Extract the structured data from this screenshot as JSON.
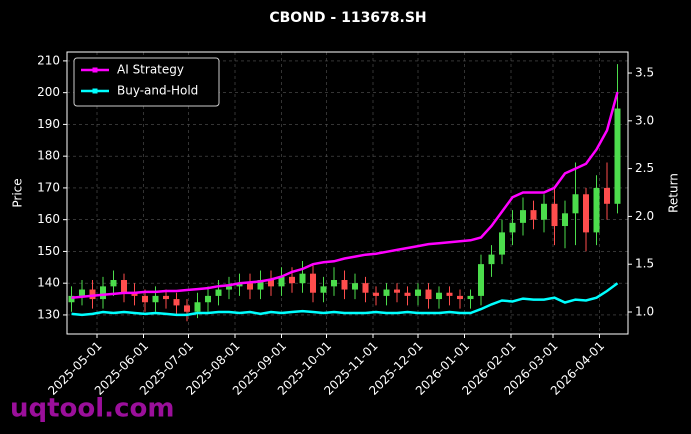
{
  "chart_data": {
    "type": "candlestick",
    "title": "CBOND - 113678.SH",
    "ylabel": "Price",
    "y2label": "Return",
    "watermark": "uqtool.com",
    "grid": true,
    "legend": "upper left",
    "up_color": "#4cdd4c",
    "down_color": "#ff4d4d",
    "xlim": [
      "2025-04-11",
      "2026-04-20"
    ],
    "xticks": [
      "2025-05-01",
      "2025-06-01",
      "2025-07-01",
      "2025-08-01",
      "2025-09-01",
      "2025-10-01",
      "2025-11-01",
      "2025-12-01",
      "2026-01-01",
      "2026-02-01",
      "2026-03-01",
      "2026-04-01"
    ],
    "ylim": [
      124,
      212.8
    ],
    "yticks": [
      130,
      140,
      150,
      160,
      170,
      180,
      190,
      200,
      210
    ],
    "y2lim": [
      0.77,
      3.72
    ],
    "y2ticks": [
      {
        "value": 1,
        "label": "1.0"
      },
      1.5,
      {
        "value": 2,
        "label": "2.0"
      },
      2.5,
      {
        "value": 3,
        "label": "3.0"
      },
      3.5
    ],
    "x": [
      "2025-04-14",
      "2025-04-21",
      "2025-04-28",
      "2025-05-05",
      "2025-05-12",
      "2025-05-19",
      "2025-05-26",
      "2025-06-02",
      "2025-06-09",
      "2025-06-16",
      "2025-06-23",
      "2025-06-30",
      "2025-07-07",
      "2025-07-14",
      "2025-07-21",
      "2025-07-28",
      "2025-08-04",
      "2025-08-11",
      "2025-08-18",
      "2025-08-25",
      "2025-09-01",
      "2025-09-08",
      "2025-09-15",
      "2025-09-22",
      "2025-09-29",
      "2025-10-06",
      "2025-10-13",
      "2025-10-20",
      "2025-10-27",
      "2025-11-03",
      "2025-11-10",
      "2025-11-17",
      "2025-11-24",
      "2025-12-01",
      "2025-12-08",
      "2025-12-15",
      "2025-12-22",
      "2025-12-29",
      "2026-01-05",
      "2026-01-12",
      "2026-01-19",
      "2026-01-26",
      "2026-02-02",
      "2026-02-09",
      "2026-02-16",
      "2026-02-23",
      "2026-03-02",
      "2026-03-09",
      "2026-03-16",
      "2026-03-23",
      "2026-03-30",
      "2026-04-06",
      "2026-04-13"
    ],
    "open": [
      134,
      136,
      138,
      135,
      139,
      141,
      137,
      136,
      134,
      136,
      135,
      133,
      131,
      134,
      136,
      138,
      139,
      140,
      138,
      141,
      139,
      142,
      140,
      143,
      137,
      139,
      141,
      138,
      140,
      137,
      136,
      138,
      137,
      136,
      138,
      135,
      137,
      136,
      135,
      136,
      146,
      149,
      156,
      159,
      163,
      160,
      165,
      158,
      162,
      168,
      156,
      170,
      165
    ],
    "high": [
      139,
      141,
      141,
      142,
      144,
      143,
      140,
      138,
      139,
      138,
      137,
      135,
      137,
      139,
      141,
      142,
      143,
      143,
      144,
      144,
      145,
      145,
      147,
      146,
      142,
      145,
      144,
      143,
      142,
      139,
      140,
      140,
      139,
      140,
      140,
      139,
      139,
      138,
      138,
      149,
      152,
      160,
      163,
      167,
      166,
      168,
      170,
      166,
      178,
      170,
      174,
      178,
      209
    ],
    "low": [
      131,
      133,
      132,
      132,
      136,
      134,
      133,
      131,
      131,
      132,
      130,
      128,
      129,
      131,
      133,
      135,
      136,
      135,
      135,
      136,
      136,
      137,
      137,
      134,
      134,
      136,
      135,
      135,
      134,
      133,
      133,
      134,
      133,
      133,
      132,
      132,
      133,
      132,
      132,
      133,
      142,
      146,
      152,
      155,
      157,
      156,
      152,
      151,
      152,
      150,
      152,
      160,
      162
    ],
    "close": [
      136,
      138,
      135,
      139,
      141,
      137,
      136,
      134,
      136,
      135,
      133,
      131,
      134,
      136,
      138,
      139,
      140,
      138,
      141,
      139,
      142,
      140,
      143,
      137,
      139,
      141,
      138,
      140,
      137,
      136,
      138,
      137,
      136,
      138,
      135,
      137,
      136,
      135,
      136,
      146,
      149,
      156,
      159,
      163,
      160,
      165,
      158,
      162,
      168,
      156,
      170,
      165,
      195
    ],
    "series": [
      {
        "name": "AI Strategy",
        "color": "#ff00ff",
        "axis": "y2",
        "values": [
          1.15,
          1.16,
          1.17,
          1.18,
          1.19,
          1.2,
          1.2,
          1.21,
          1.21,
          1.22,
          1.22,
          1.23,
          1.24,
          1.25,
          1.27,
          1.28,
          1.3,
          1.31,
          1.32,
          1.34,
          1.37,
          1.42,
          1.45,
          1.5,
          1.52,
          1.53,
          1.56,
          1.58,
          1.6,
          1.61,
          1.63,
          1.65,
          1.67,
          1.69,
          1.71,
          1.72,
          1.73,
          1.74,
          1.75,
          1.78,
          1.9,
          2.05,
          2.2,
          2.25,
          2.25,
          2.25,
          2.3,
          2.45,
          2.5,
          2.55,
          2.7,
          2.9,
          3.3
        ]
      },
      {
        "name": "Buy-and-Hold",
        "color": "#00ffff",
        "axis": "y2",
        "values": [
          0.98,
          0.97,
          0.98,
          1.0,
          0.99,
          1.0,
          0.99,
          0.98,
          0.99,
          0.98,
          0.97,
          0.97,
          0.99,
          0.99,
          1.0,
          1.0,
          0.99,
          1.0,
          0.98,
          1.0,
          0.99,
          1.0,
          1.01,
          1.0,
          0.99,
          1.0,
          0.99,
          0.99,
          0.99,
          1.0,
          0.99,
          0.99,
          1.0,
          0.99,
          0.99,
          0.99,
          1.0,
          0.99,
          0.99,
          1.03,
          1.08,
          1.12,
          1.11,
          1.14,
          1.13,
          1.13,
          1.15,
          1.1,
          1.13,
          1.12,
          1.15,
          1.22,
          1.3
        ]
      }
    ]
  }
}
